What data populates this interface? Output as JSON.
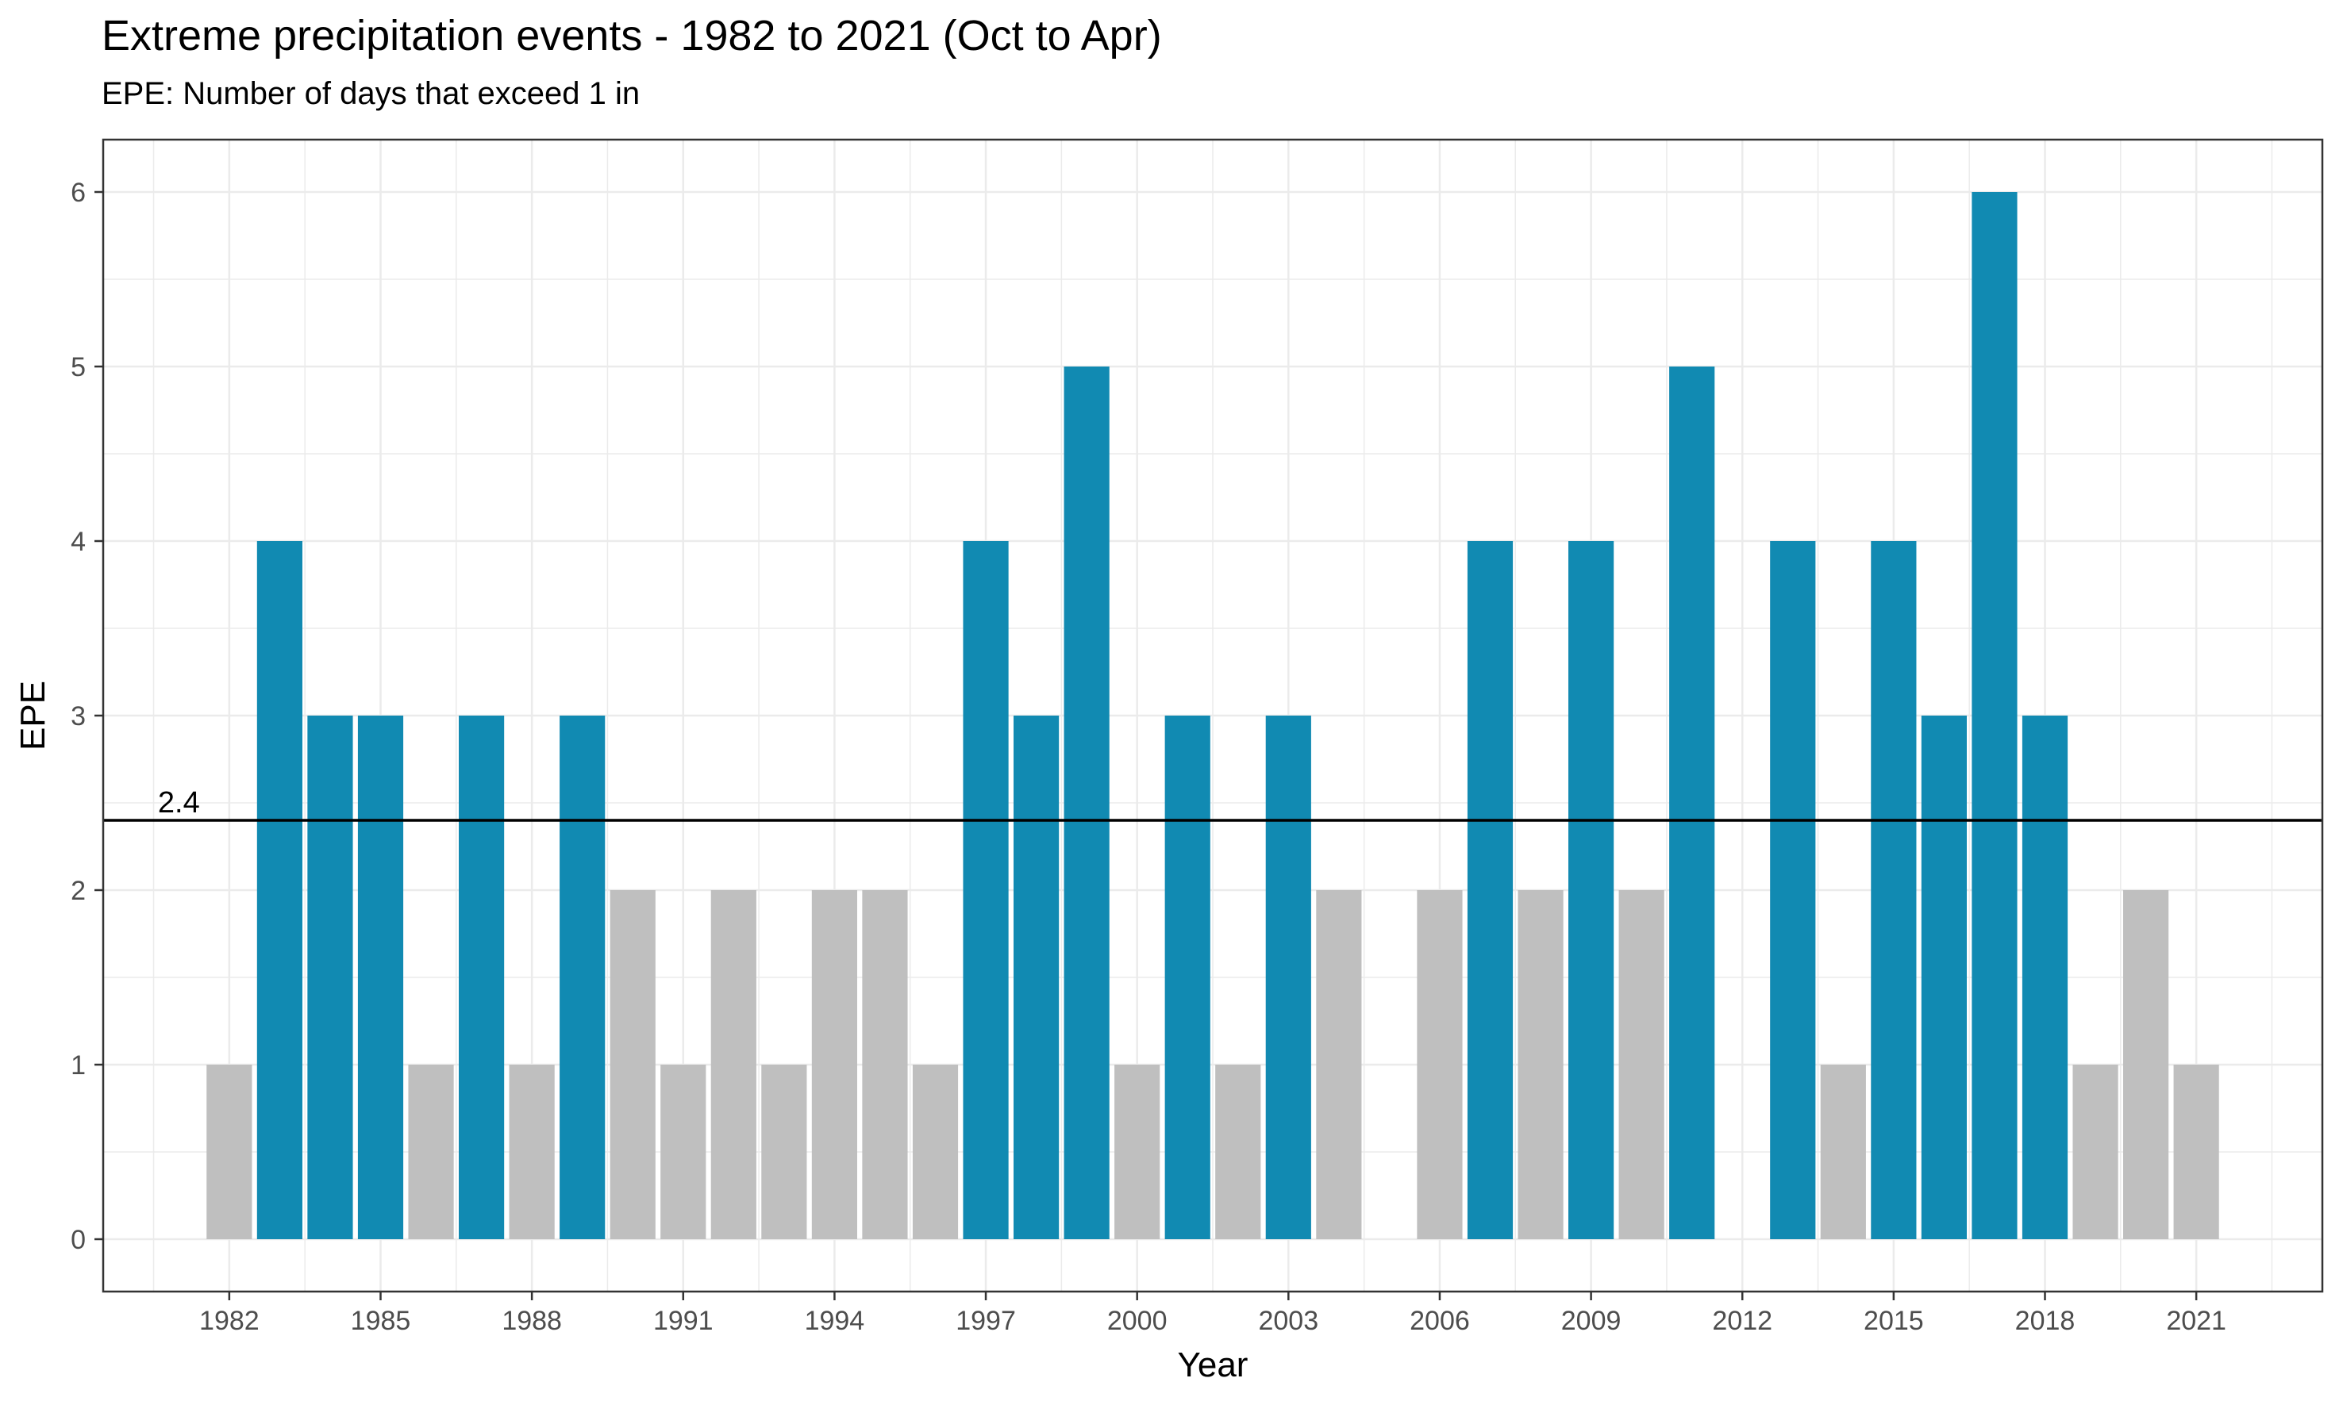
{
  "chart_data": {
    "type": "bar",
    "title": "Extreme precipitation events - 1982 to 2021 (Oct to Apr)",
    "subtitle": "EPE: Number of days that exceed 1 in",
    "xlabel": "Year",
    "ylabel": "EPE",
    "xlim": [
      1979.5,
      2023.5
    ],
    "ylim": [
      -0.3,
      6.3
    ],
    "x_ticks": [
      1982,
      1985,
      1988,
      1991,
      1994,
      1997,
      2000,
      2003,
      2006,
      2009,
      2012,
      2015,
      2018,
      2021
    ],
    "y_ticks": [
      0,
      1,
      2,
      3,
      4,
      5,
      6
    ],
    "grid": true,
    "reference_line": {
      "value": 2.4,
      "label": "2.4"
    },
    "colors": {
      "above": "#118ab2",
      "below": "#bfbfbf",
      "line": "#000000",
      "panel_border": "#333333",
      "grid": "#ebebeb"
    },
    "points": [
      {
        "x": 1982,
        "y": 1
      },
      {
        "x": 1983,
        "y": 4
      },
      {
        "x": 1984,
        "y": 3
      },
      {
        "x": 1985,
        "y": 3
      },
      {
        "x": 1986,
        "y": 1
      },
      {
        "x": 1987,
        "y": 3
      },
      {
        "x": 1988,
        "y": 1
      },
      {
        "x": 1989,
        "y": 3
      },
      {
        "x": 1990,
        "y": 2
      },
      {
        "x": 1991,
        "y": 1
      },
      {
        "x": 1992,
        "y": 2
      },
      {
        "x": 1993,
        "y": 1
      },
      {
        "x": 1994,
        "y": 2
      },
      {
        "x": 1995,
        "y": 2
      },
      {
        "x": 1996,
        "y": 1
      },
      {
        "x": 1997,
        "y": 4
      },
      {
        "x": 1998,
        "y": 3
      },
      {
        "x": 1999,
        "y": 5
      },
      {
        "x": 2000,
        "y": 1
      },
      {
        "x": 2001,
        "y": 3
      },
      {
        "x": 2002,
        "y": 1
      },
      {
        "x": 2003,
        "y": 3
      },
      {
        "x": 2004,
        "y": 2
      },
      {
        "x": 2005,
        "y": 0
      },
      {
        "x": 2006,
        "y": 2
      },
      {
        "x": 2007,
        "y": 4
      },
      {
        "x": 2008,
        "y": 2
      },
      {
        "x": 2009,
        "y": 4
      },
      {
        "x": 2010,
        "y": 2
      },
      {
        "x": 2011,
        "y": 5
      },
      {
        "x": 2012,
        "y": 0
      },
      {
        "x": 2013,
        "y": 4
      },
      {
        "x": 2014,
        "y": 1
      },
      {
        "x": 2015,
        "y": 4
      },
      {
        "x": 2016,
        "y": 3
      },
      {
        "x": 2017,
        "y": 6
      },
      {
        "x": 2018,
        "y": 3
      },
      {
        "x": 2019,
        "y": 1
      },
      {
        "x": 2020,
        "y": 2
      },
      {
        "x": 2021,
        "y": 1
      }
    ]
  }
}
